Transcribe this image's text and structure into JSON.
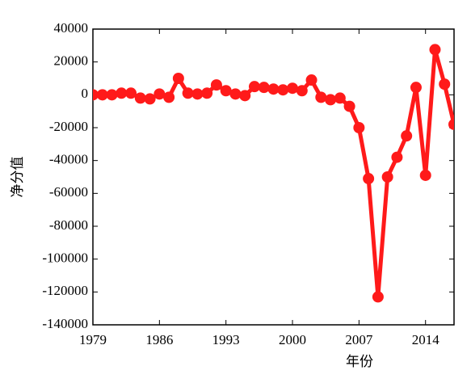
{
  "chart_data": {
    "type": "line",
    "x_label": "年份",
    "y_label": "净分值",
    "x": [
      1979,
      1980,
      1981,
      1982,
      1983,
      1984,
      1985,
      1986,
      1987,
      1988,
      1989,
      1990,
      1991,
      1992,
      1993,
      1994,
      1995,
      1996,
      1997,
      1998,
      1999,
      2000,
      2001,
      2002,
      2003,
      2004,
      2005,
      2006,
      2007,
      2008,
      2009,
      2010,
      2011,
      2012,
      2013,
      2014,
      2015,
      2016,
      2017
    ],
    "series": [
      {
        "color": "#ff1a1a",
        "values": [
          0,
          0,
          0,
          1000,
          1000,
          -2000,
          -2500,
          500,
          -1500,
          10000,
          1000,
          500,
          1000,
          6000,
          2500,
          500,
          -500,
          5000,
          4500,
          3500,
          3000,
          4000,
          2500,
          9000,
          -1500,
          -3000,
          -2000,
          -7000,
          -20000,
          -51000,
          -123000,
          -50000,
          -38000,
          -25000,
          4500,
          -49000,
          27500,
          6500,
          -18000
        ]
      }
    ],
    "xlim": [
      1979,
      2017
    ],
    "xticks": [
      1979,
      1986,
      1993,
      2000,
      2007,
      2014
    ],
    "ylim": [
      -140000,
      40000
    ],
    "yticks": [
      -140000,
      -120000,
      -100000,
      -80000,
      -60000,
      -40000,
      -20000,
      0,
      20000,
      40000
    ]
  }
}
